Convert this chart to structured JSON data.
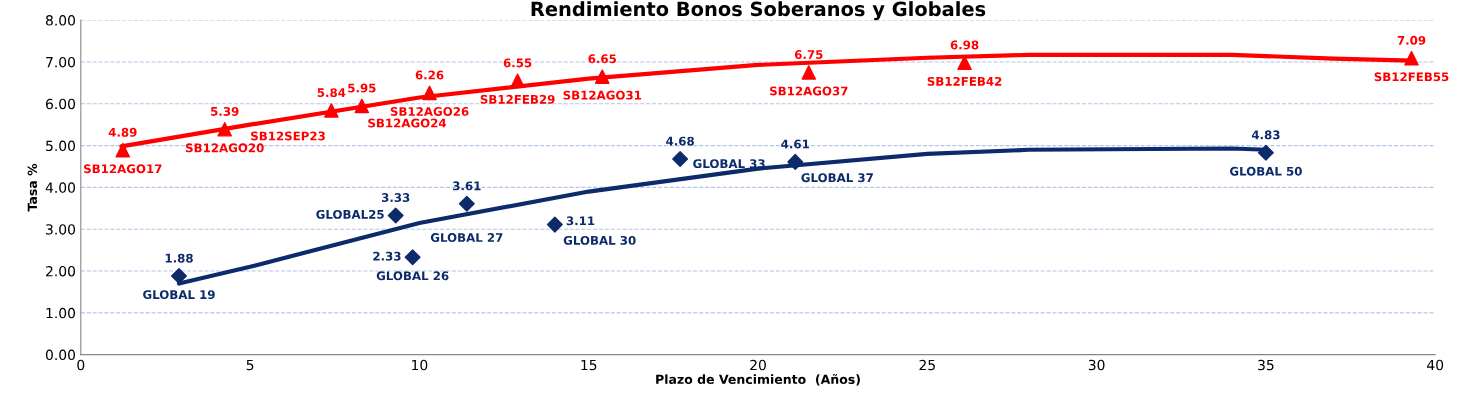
{
  "chart_data": {
    "type": "scatter",
    "title": "Rendimiento Bonos Soberanos y Globales",
    "xlabel": "Plazo de Vencimiento  (Años)",
    "ylabel": "Tasa %",
    "xlim": [
      0,
      40
    ],
    "xticks": [
      0,
      5,
      10,
      15,
      20,
      25,
      30,
      35,
      40
    ],
    "ylim": [
      0,
      8
    ],
    "yticks": [
      {
        "value": 0,
        "label": "0.00"
      },
      {
        "value": 1,
        "label": "1.00"
      },
      {
        "value": 2,
        "label": "2.00"
      },
      {
        "value": 3,
        "label": "3.00"
      },
      {
        "value": 4,
        "label": "4.00"
      },
      {
        "value": 5,
        "label": "5.00"
      },
      {
        "value": 6,
        "label": "6.00"
      },
      {
        "value": 7,
        "label": "7.00"
      },
      {
        "value": 8,
        "label": "8.00"
      }
    ],
    "grid": "y",
    "legend": false,
    "series": [
      {
        "type": "line",
        "color": "#ff0000",
        "marker": "none",
        "x": [
          1.2,
          5,
          10,
          15,
          20,
          25,
          28,
          34,
          37,
          39.3
        ],
        "values": [
          4.98,
          5.5,
          6.15,
          6.6,
          6.93,
          7.1,
          7.17,
          7.17,
          7.08,
          7.03
        ]
      },
      {
        "type": "line",
        "color": "#0d2a6b",
        "marker": "none",
        "x": [
          2.9,
          5,
          10,
          15,
          20,
          25,
          28,
          34,
          35
        ],
        "values": [
          1.7,
          2.1,
          3.15,
          3.9,
          4.45,
          4.8,
          4.9,
          4.93,
          4.9
        ]
      },
      {
        "color": "#ff0000",
        "marker": "triangle",
        "x": [
          1.24,
          4.25,
          7.4,
          8.3,
          10.3,
          12.9,
          15.4,
          21.5,
          26.1,
          39.3
        ],
        "values": [
          4.89,
          5.39,
          5.84,
          5.95,
          6.26,
          6.55,
          6.65,
          6.75,
          6.98,
          7.09
        ],
        "value_labels": [
          "4.89",
          "5.39",
          "5.84",
          "5.95",
          "6.26",
          "6.55",
          "6.65",
          "6.75",
          "6.98",
          "7.09"
        ]
      },
      {
        "color": "#0d2a6b",
        "marker": "diamond",
        "x": [
          2.9,
          9.3,
          9.8,
          11.4,
          14.0,
          17.7,
          21.1,
          35.0
        ],
        "values": [
          1.88,
          3.33,
          2.33,
          3.61,
          3.11,
          4.68,
          4.61,
          4.83
        ],
        "value_labels": [
          "1.88",
          "3.33",
          "2.33",
          "3.61",
          "3.11",
          "4.68",
          "4.61",
          "4.83"
        ]
      }
    ],
    "annotations": [
      {
        "text": "SB12AGO17",
        "x": 1.24,
        "y": 4.89
      },
      {
        "text": "SB12AGO20",
        "x": 4.25,
        "y": 5.39
      },
      {
        "text": "SB12SEP23",
        "x": 7.4,
        "y": 5.84
      },
      {
        "text": "SB12AGO24",
        "x": 8.3,
        "y": 5.95
      },
      {
        "text": "SB12AGO26",
        "x": 10.3,
        "y": 6.26
      },
      {
        "text": "SB12FEB29",
        "x": 12.9,
        "y": 6.55
      },
      {
        "text": "SB12AGO31",
        "x": 15.4,
        "y": 6.65
      },
      {
        "text": "SB12AGO37",
        "x": 21.5,
        "y": 6.75
      },
      {
        "text": "SB12FEB42",
        "x": 26.1,
        "y": 6.98
      },
      {
        "text": "SB12FEB55",
        "x": 39.3,
        "y": 7.09
      },
      {
        "text": "GLOBAL 19",
        "x": 2.9,
        "y": 1.88
      },
      {
        "text": "GLOBAL25",
        "x": 9.3,
        "y": 3.33
      },
      {
        "text": "GLOBAL 26",
        "x": 9.8,
        "y": 2.33
      },
      {
        "text": "GLOBAL 27",
        "x": 11.4,
        "y": 3.61
      },
      {
        "text": "GLOBAL 30",
        "x": 14.0,
        "y": 3.11
      },
      {
        "text": "GLOBAL 33",
        "x": 17.7,
        "y": 4.68
      },
      {
        "text": "GLOBAL 37",
        "x": 21.1,
        "y": 4.61
      },
      {
        "text": "GLOBAL 50",
        "x": 35.0,
        "y": 4.83
      }
    ]
  }
}
